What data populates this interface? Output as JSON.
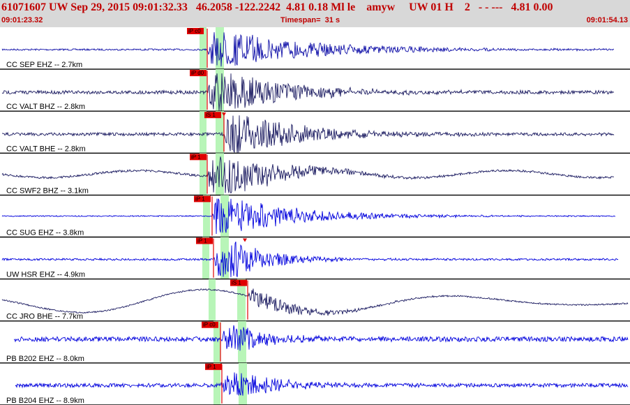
{
  "header": {
    "title": "61071607 UW Sep 29, 2015 09:01:32.33   46.2058 -122.2242  4.81 0.18 Ml le    amyw     UW 01 H    2   - - ---   4.81 0.00",
    "start_time": "09:01:23.32",
    "timespan": "Timespan=  31 s",
    "end_time": "09:01:54.13"
  },
  "colors": {
    "header_bg": "#d8d8d8",
    "header_text": "#c00000",
    "trace_blue": "#0000dd",
    "trace_navy": "#1a1a60",
    "window_green": "#b8f5b8",
    "pick_red": "#e00000"
  },
  "traces": [
    {
      "label": "CC SEP EHZ -- 2.7km",
      "color": "navy_blue",
      "picks": [
        {
          "text": "iP c0",
          "type": "P"
        }
      ]
    },
    {
      "label": "CC VALT BHZ -- 2.8km",
      "color": "navy",
      "picks": [
        {
          "text": "iP d0",
          "type": "P"
        }
      ]
    },
    {
      "label": "CC VALT BHE -- 2.8km",
      "color": "navy",
      "picks": [
        {
          "text": "iS 1",
          "type": "S"
        }
      ]
    },
    {
      "label": "CC SWF2 BHZ -- 3.1km",
      "color": "navy",
      "picks": [
        {
          "text": "iP 1",
          "type": "P"
        }
      ]
    },
    {
      "label": "CC SUG EHZ -- 3.8km",
      "color": "blue",
      "picks": [
        {
          "text": "iP 1",
          "type": "P"
        }
      ]
    },
    {
      "label": "UW HSR EHZ -- 4.9km",
      "color": "blue",
      "picks": [
        {
          "text": "iP 1",
          "type": "P"
        }
      ]
    },
    {
      "label": "CC JRO BHE -- 7.7km",
      "color": "navy",
      "picks": [
        {
          "text": "iS 1",
          "type": "S"
        }
      ]
    },
    {
      "label": "PB B202 EHZ -- 8.0km",
      "color": "blue",
      "picks": [
        {
          "text": "iP c0",
          "type": "P"
        }
      ]
    },
    {
      "label": "PB B204 EHZ -- 8.9km",
      "color": "blue",
      "picks": [
        {
          "text": "iP 1",
          "type": "P"
        }
      ]
    }
  ]
}
